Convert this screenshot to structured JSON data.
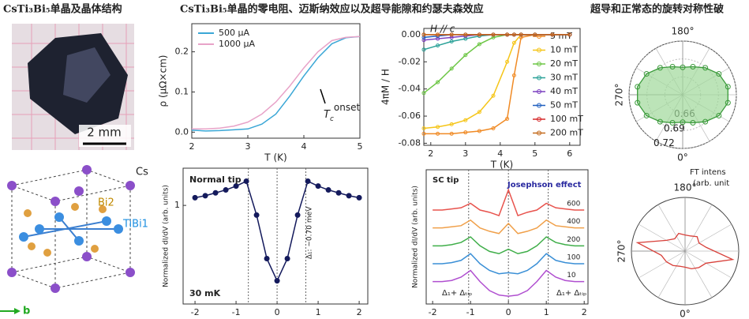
{
  "headings": [
    "CsTi₃Bi₅单晶及晶体结构",
    "CsTi₃Bi₅单晶的零电阻、迈斯纳效应以及超导能隙和约瑟夫森效应",
    "超导和正常态的旋转对称性破"
  ],
  "photo": {
    "scale_label": "2 mm"
  },
  "structure": {
    "labels": [
      "Cs",
      "Bi2",
      "TiBi1"
    ],
    "axis_label": "b"
  },
  "chart_data": [
    {
      "type": "line",
      "xlabel": "T (K)",
      "ylabel": "ρ (μΩ×cm)",
      "notes": [
        {
          "base": "T",
          "sub": "c",
          "sup": "onset"
        }
      ],
      "x": [
        2,
        2.25,
        2.5,
        2.75,
        3,
        3.25,
        3.5,
        3.75,
        4,
        4.25,
        4.5,
        4.75,
        5
      ],
      "series": [
        {
          "name": "500 μA",
          "color": "#3ba7d6",
          "values": [
            0.005,
            0.003,
            0.004,
            0.006,
            0.008,
            0.02,
            0.045,
            0.09,
            0.14,
            0.185,
            0.22,
            0.235,
            0.238
          ]
        },
        {
          "name": "1000 μA",
          "color": "#e8a3c8",
          "values": [
            0.008,
            0.008,
            0.01,
            0.015,
            0.025,
            0.045,
            0.075,
            0.115,
            0.16,
            0.2,
            0.228,
            0.236,
            0.238
          ]
        }
      ],
      "xlim": [
        2,
        5
      ],
      "ylim": [
        -0.015,
        0.27
      ],
      "xticks": [
        2,
        3,
        4,
        5
      ],
      "yticks": [
        {
          "value": 0,
          "label": "0.0"
        },
        {
          "value": 0.1,
          "label": "0.1"
        },
        {
          "value": 0.2,
          "label": "0.2"
        }
      ],
      "legend": "upper left",
      "markers": false
    },
    {
      "type": "line",
      "xlabel": "T (K)",
      "ylabel": "4πM / H",
      "notes": [
        "H // c"
      ],
      "x": [
        1.8,
        2.2,
        2.6,
        3.0,
        3.4,
        3.8,
        4.2,
        4.4,
        4.6,
        5.0,
        5.5,
        6.0
      ],
      "series": [
        {
          "name": "5 mT",
          "color": "#f08a24",
          "values": [
            -0.073,
            -0.073,
            -0.073,
            -0.072,
            -0.071,
            -0.069,
            -0.062,
            -0.03,
            -0.002,
            0,
            0,
            0
          ]
        },
        {
          "name": "10 mT",
          "color": "#f5c518",
          "values": [
            -0.069,
            -0.068,
            -0.066,
            -0.063,
            -0.057,
            -0.045,
            -0.02,
            -0.006,
            0,
            0,
            0,
            0
          ]
        },
        {
          "name": "20 mT",
          "color": "#6cc644",
          "values": [
            -0.043,
            -0.035,
            -0.025,
            -0.015,
            -0.007,
            -0.002,
            0,
            0,
            0,
            0,
            0,
            0
          ]
        },
        {
          "name": "30 mT",
          "color": "#2aa198",
          "values": [
            -0.011,
            -0.008,
            -0.005,
            -0.003,
            -0.001,
            0,
            0,
            0,
            0,
            0,
            0,
            0
          ]
        },
        {
          "name": "40 mT",
          "color": "#7b3fbf",
          "values": [
            -0.004,
            -0.003,
            -0.002,
            -0.001,
            0,
            0,
            0,
            0,
            0,
            0,
            0,
            0
          ]
        },
        {
          "name": "50 mT",
          "color": "#1f5fbf",
          "values": [
            -0.002,
            -0.001,
            0,
            0,
            0,
            0,
            0,
            0,
            0,
            0,
            0,
            0
          ]
        },
        {
          "name": "100 mT",
          "color": "#d62728",
          "values": [
            0,
            0,
            0,
            0,
            0,
            0,
            0,
            0,
            0,
            0,
            0,
            0
          ]
        },
        {
          "name": "200 mT",
          "color": "#c46a1c",
          "values": [
            0,
            0,
            0,
            0,
            0,
            0,
            0,
            0,
            0,
            0,
            0,
            0
          ]
        }
      ],
      "xlim": [
        1.8,
        6.3
      ],
      "ylim": [
        -0.0815,
        0.0046
      ],
      "xticks": [
        2,
        3,
        4,
        5,
        6
      ],
      "yticks": [
        {
          "value": -0.08,
          "label": "-0.08"
        },
        {
          "value": -0.06,
          "label": "-0.06"
        },
        {
          "value": -0.04,
          "label": "-0.04"
        },
        {
          "value": -0.02,
          "label": "-0.02"
        },
        {
          "value": 0,
          "label": "0.00"
        }
      ],
      "legend": "center right",
      "markers": true
    },
    {
      "type": "line",
      "xlabel": "Sample bias (mV)",
      "ylabel": "Normalized dI/dV (arb. units)",
      "notes": [
        "Normal tip",
        "30 mK",
        "Δ₁: ~0.70 meV"
      ],
      "x": [
        -2,
        -1.75,
        -1.5,
        -1.25,
        -1,
        -0.75,
        -0.5,
        -0.25,
        0,
        0.25,
        0.5,
        0.75,
        1,
        1.25,
        1.5,
        1.75,
        2
      ],
      "values": [
        1.08,
        1.1,
        1.13,
        1.16,
        1.2,
        1.25,
        0.9,
        0.45,
        0.22,
        0.45,
        0.9,
        1.25,
        1.2,
        1.16,
        1.13,
        1.1,
        1.08
      ],
      "color": "#141a5c",
      "vlines": [
        -0.7,
        0,
        0.7
      ],
      "xlim": [
        -2.29,
        2.21
      ],
      "ylim": [
        -0.02,
        1.385
      ],
      "xticks": [
        -2,
        -1,
        0,
        1,
        2
      ],
      "yticks": [
        1
      ],
      "markers": true
    },
    {
      "type": "line",
      "xlabel": "Sample bias (mV)",
      "ylabel": "Normalized dI/dV (arb. units)",
      "notes": [
        "SC tip",
        "Josephson effect",
        "Δ₁+ Δₜᵢₚ",
        "Δ₁+ Δₜᵢₚ"
      ],
      "x": [
        -2,
        -1.75,
        -1.5,
        -1.25,
        -1,
        -0.75,
        -0.5,
        -0.25,
        0,
        0.25,
        0.5,
        0.75,
        1,
        1.25,
        1.5,
        1.75,
        2
      ],
      "series": [
        {
          "name": "600",
          "color": "#e8534d",
          "values": [
            4.2,
            4.2,
            4.25,
            4.3,
            4.5,
            4.2,
            4.1,
            3.95,
            5.1,
            3.95,
            4.1,
            4.2,
            4.5,
            4.3,
            4.25,
            4.2,
            4.2
          ]
        },
        {
          "name": "400",
          "color": "#f0a04a",
          "values": [
            3.4,
            3.4,
            3.45,
            3.5,
            3.75,
            3.4,
            3.25,
            3.15,
            3.6,
            3.15,
            3.25,
            3.4,
            3.75,
            3.5,
            3.45,
            3.4,
            3.4
          ]
        },
        {
          "name": "200",
          "color": "#3fae49",
          "values": [
            2.6,
            2.6,
            2.65,
            2.75,
            3.0,
            2.6,
            2.35,
            2.25,
            2.45,
            2.25,
            2.35,
            2.6,
            3.0,
            2.75,
            2.65,
            2.6,
            2.6
          ]
        },
        {
          "name": "100",
          "color": "#3a8fd6",
          "values": [
            1.8,
            1.8,
            1.85,
            1.95,
            2.25,
            1.8,
            1.5,
            1.35,
            1.4,
            1.35,
            1.5,
            1.8,
            2.25,
            1.95,
            1.85,
            1.8,
            1.8
          ]
        },
        {
          "name": "10",
          "color": "#b04fd0",
          "values": [
            1.0,
            1.0,
            1.05,
            1.2,
            1.5,
            1.0,
            0.6,
            0.4,
            0.35,
            0.4,
            0.6,
            1.0,
            1.5,
            1.2,
            1.05,
            1.0,
            1.0
          ]
        }
      ],
      "vlines": [
        -1.05,
        0,
        1.05
      ],
      "xlim": [
        -2.17,
        2.1
      ],
      "ylim": [
        0,
        6
      ],
      "xticks": [
        -2,
        -1,
        0,
        1,
        2
      ],
      "legend": "line end",
      "markers": false
    },
    {
      "type": "polar",
      "theta": [
        0,
        20,
        40,
        60,
        80,
        100,
        120,
        140,
        160,
        180,
        200,
        220,
        240,
        260,
        280,
        300,
        320,
        340
      ],
      "r": [
        0.676,
        0.68,
        0.689,
        0.7,
        0.707,
        0.707,
        0.7,
        0.689,
        0.68,
        0.676,
        0.68,
        0.689,
        0.7,
        0.707,
        0.707,
        0.7,
        0.689,
        0.68
      ],
      "color": "#3a9a3a",
      "fill": "#9fd99a",
      "rlim": [
        0.63,
        0.72
      ],
      "rticks": [
        0.66,
        0.69,
        0.72
      ],
      "thetaticks": [
        {
          "value": 180,
          "label": "180°"
        },
        {
          "value": 270,
          "label": "270°"
        },
        {
          "value": 0,
          "label": "0°"
        }
      ],
      "markers": true
    },
    {
      "type": "polar",
      "notes": [
        "FT intens",
        "(arb. unit"
      ],
      "theta": [
        0,
        20,
        40,
        60,
        80,
        100,
        120,
        140,
        160,
        180,
        200,
        220,
        240,
        260,
        280,
        300,
        320,
        340
      ],
      "r": [
        0.3,
        0.35,
        0.4,
        0.45,
        0.9,
        0.4,
        0.3,
        0.35,
        0.3,
        0.3,
        0.35,
        0.3,
        0.4,
        0.9,
        0.45,
        0.4,
        0.35,
        0.3
      ],
      "color": "#d8403a",
      "rlim": [
        0,
        1
      ],
      "thetaticks": [
        {
          "value": 180,
          "label": "180°"
        },
        {
          "value": 270,
          "label": "270°"
        },
        {
          "value": 0,
          "label": "0°"
        }
      ],
      "markers": false
    }
  ]
}
